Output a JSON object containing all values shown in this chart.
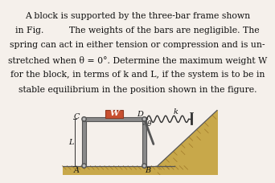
{
  "title_lines": [
    "A block is supported by the three-bar frame shown",
    "in Fig.         The weights of the bars are negligible. The",
    "spring can act in either tension or compression and is un-",
    "stretched when θ = 0°. Determine the maximum weight W",
    "for the block, in terms of k and L, if the system is to be in",
    "stable equilibrium in the position shown in the figure."
  ],
  "bg_color": "#f5f0eb",
  "ground_color": "#c8a84a",
  "frame_color": "#8a8a8a",
  "frame_dark": "#555555",
  "block_color": "#c85030",
  "block_edge": "#903820",
  "spring_color": "#303030",
  "pin_color": "#383838",
  "text_color": "#111111",
  "label_fontsize": 7.0,
  "title_fontsize": 7.8
}
